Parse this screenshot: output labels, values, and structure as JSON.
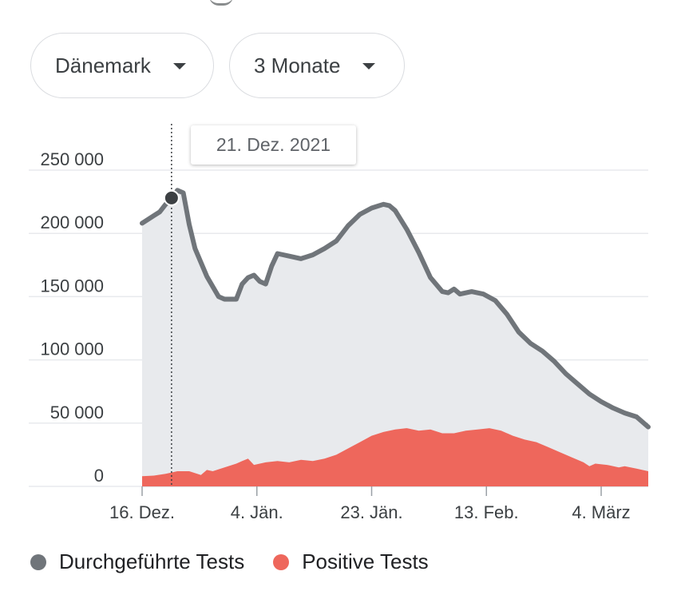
{
  "controls": {
    "country": "Dänemark",
    "range": "3 Monate"
  },
  "tooltip": {
    "date": "21. Dez. 2021"
  },
  "legend": [
    {
      "label": "Durchgeführte Tests",
      "color": "#70757a"
    },
    {
      "label": "Positive Tests",
      "color": "#ee675c"
    }
  ],
  "colors": {
    "tests_line": "#70757a",
    "tests_fill": "#e8eaed",
    "positive_fill": "#ee675c",
    "gridline": "#e8eaed",
    "marker": "#3c4043"
  },
  "chart_data": {
    "type": "area",
    "x_tick_labels": [
      "16. Dez.",
      "4. Jän.",
      "23. Jän.",
      "13. Feb.",
      "4. März"
    ],
    "y_tick_labels": [
      "250 000",
      "200 000",
      "150 000",
      "100 000",
      "50 000",
      "0"
    ],
    "y_ticks": [
      250000,
      200000,
      150000,
      100000,
      50000,
      0
    ],
    "ylim": [
      0,
      250000
    ],
    "x_start": "2021-12-16",
    "x_end": "2022-03-12",
    "grid": true,
    "legend_position": "bottom",
    "highlight": {
      "x": "2021-12-21",
      "value": 228000
    },
    "series": [
      {
        "name": "Durchgeführte Tests",
        "style": "line-with-fill",
        "points": [
          [
            "2021-12-16",
            208000
          ],
          [
            "2021-12-18",
            214000
          ],
          [
            "2021-12-19",
            217000
          ],
          [
            "2021-12-20",
            223000
          ],
          [
            "2021-12-21",
            227000
          ],
          [
            "2021-12-22",
            234000
          ],
          [
            "2021-12-23",
            232000
          ],
          [
            "2021-12-24",
            207000
          ],
          [
            "2021-12-25",
            188000
          ],
          [
            "2021-12-27",
            166000
          ],
          [
            "2021-12-29",
            150000
          ],
          [
            "2021-12-30",
            148000
          ],
          [
            "2022-01-01",
            148000
          ],
          [
            "2022-01-02",
            160000
          ],
          [
            "2022-01-03",
            165000
          ],
          [
            "2022-01-04",
            167000
          ],
          [
            "2022-01-05",
            162000
          ],
          [
            "2022-01-06",
            160000
          ],
          [
            "2022-01-07",
            174000
          ],
          [
            "2022-01-08",
            184000
          ],
          [
            "2022-01-10",
            182000
          ],
          [
            "2022-01-12",
            180000
          ],
          [
            "2022-01-14",
            183000
          ],
          [
            "2022-01-16",
            188000
          ],
          [
            "2022-01-18",
            194000
          ],
          [
            "2022-01-20",
            206000
          ],
          [
            "2022-01-22",
            215000
          ],
          [
            "2022-01-24",
            220000
          ],
          [
            "2022-01-26",
            223000
          ],
          [
            "2022-01-27",
            222000
          ],
          [
            "2022-01-28",
            218000
          ],
          [
            "2022-01-30",
            203000
          ],
          [
            "2022-02-01",
            185000
          ],
          [
            "2022-02-03",
            165000
          ],
          [
            "2022-02-05",
            154000
          ],
          [
            "2022-02-06",
            153000
          ],
          [
            "2022-02-07",
            156000
          ],
          [
            "2022-02-08",
            152000
          ],
          [
            "2022-02-10",
            154000
          ],
          [
            "2022-02-12",
            152000
          ],
          [
            "2022-02-14",
            147000
          ],
          [
            "2022-02-16",
            136000
          ],
          [
            "2022-02-18",
            122000
          ],
          [
            "2022-02-20",
            113000
          ],
          [
            "2022-02-22",
            107000
          ],
          [
            "2022-02-24",
            99000
          ],
          [
            "2022-02-26",
            89000
          ],
          [
            "2022-02-28",
            81000
          ],
          [
            "2022-03-02",
            73000
          ],
          [
            "2022-03-04",
            67000
          ],
          [
            "2022-03-06",
            62000
          ],
          [
            "2022-03-08",
            58000
          ],
          [
            "2022-03-10",
            55000
          ],
          [
            "2022-03-12",
            47000
          ]
        ]
      },
      {
        "name": "Positive Tests",
        "style": "area",
        "points": [
          [
            "2021-12-16",
            8000
          ],
          [
            "2021-12-18",
            8500
          ],
          [
            "2021-12-20",
            10000
          ],
          [
            "2021-12-22",
            12000
          ],
          [
            "2021-12-24",
            12000
          ],
          [
            "2021-12-26",
            9000
          ],
          [
            "2021-12-27",
            13000
          ],
          [
            "2021-12-28",
            12000
          ],
          [
            "2021-12-30",
            15000
          ],
          [
            "2022-01-01",
            18000
          ],
          [
            "2022-01-02",
            20000
          ],
          [
            "2022-01-03",
            22000
          ],
          [
            "2022-01-04",
            17000
          ],
          [
            "2022-01-06",
            19000
          ],
          [
            "2022-01-08",
            20000
          ],
          [
            "2022-01-10",
            19000
          ],
          [
            "2022-01-12",
            21000
          ],
          [
            "2022-01-14",
            20000
          ],
          [
            "2022-01-16",
            22000
          ],
          [
            "2022-01-18",
            25000
          ],
          [
            "2022-01-20",
            30000
          ],
          [
            "2022-01-22",
            35000
          ],
          [
            "2022-01-24",
            40000
          ],
          [
            "2022-01-26",
            43000
          ],
          [
            "2022-01-28",
            45000
          ],
          [
            "2022-01-30",
            46000
          ],
          [
            "2022-02-01",
            44000
          ],
          [
            "2022-02-03",
            45000
          ],
          [
            "2022-02-05",
            42000
          ],
          [
            "2022-02-07",
            42000
          ],
          [
            "2022-02-09",
            44000
          ],
          [
            "2022-02-11",
            45000
          ],
          [
            "2022-02-13",
            46000
          ],
          [
            "2022-02-15",
            44000
          ],
          [
            "2022-02-17",
            40000
          ],
          [
            "2022-02-19",
            37000
          ],
          [
            "2022-02-21",
            35000
          ],
          [
            "2022-02-23",
            31000
          ],
          [
            "2022-02-25",
            27000
          ],
          [
            "2022-02-27",
            23000
          ],
          [
            "2022-03-01",
            19000
          ],
          [
            "2022-03-02",
            16000
          ],
          [
            "2022-03-03",
            18000
          ],
          [
            "2022-03-05",
            17000
          ],
          [
            "2022-03-07",
            15000
          ],
          [
            "2022-03-08",
            16000
          ],
          [
            "2022-03-09",
            15000
          ],
          [
            "2022-03-10",
            14000
          ],
          [
            "2022-03-12",
            12000
          ]
        ]
      }
    ]
  }
}
